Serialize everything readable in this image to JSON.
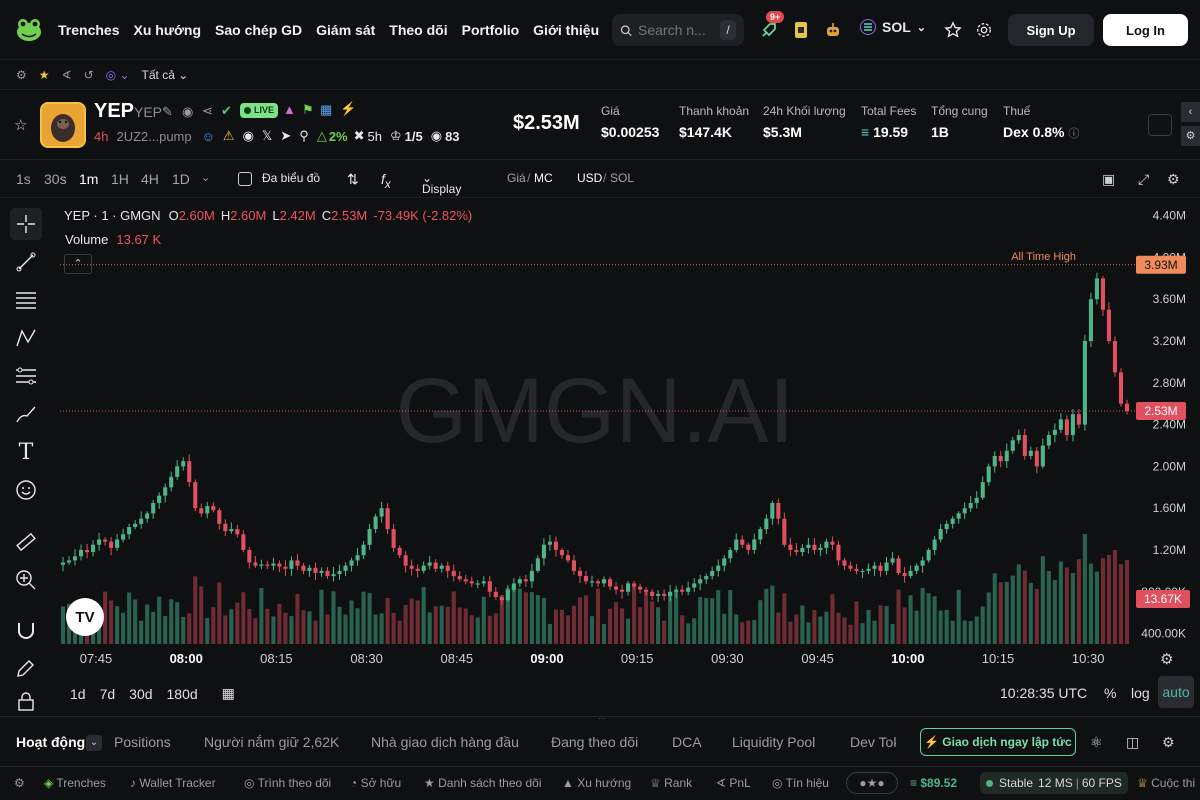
{
  "nav": {
    "links": [
      "Trenches",
      "Xu hướng",
      "Sao chép GD",
      "Giám sát",
      "Theo dõi",
      "Portfolio",
      "Giới thiệu"
    ],
    "search_placeholder": "Search n...",
    "search_shortcut": "/",
    "notif_badge": "9+",
    "chain": "SOL",
    "signup": "Sign Up",
    "login": "Log In"
  },
  "subbar": {
    "filter": "Tất cả"
  },
  "token": {
    "name": "YEP",
    "symbol": "YEP",
    "live": "LIVE",
    "age": "4h",
    "address": "2UZ2...pump",
    "holders_pct": "2%",
    "time": "5h",
    "ratio": "1/5",
    "views": "83",
    "market_cap": "$2.53M"
  },
  "stats": [
    {
      "label": "Giá",
      "value": "$0.00253"
    },
    {
      "label": "Thanh khoản",
      "value": "$147.4K"
    },
    {
      "label": "24h Khối lượng",
      "value": "$5.3M"
    },
    {
      "label": "Total Fees",
      "value": "19.59"
    },
    {
      "label": "Tổng cung",
      "value": "1B"
    },
    {
      "label": "Thuế",
      "value": "Dex 0.8%"
    }
  ],
  "chart_toolbar": {
    "intervals": [
      "1s",
      "30s",
      "1m",
      "1H",
      "4H",
      "1D"
    ],
    "multi_chart": "Đa biểu đồ",
    "display": "Display",
    "price_label": "Giá",
    "mc_label": "MC",
    "usd_label": "USD",
    "sol_label": "SOL"
  },
  "legend": {
    "title": "YEP · 1 · GMGN",
    "o_label": "O",
    "o": "2.60M",
    "h_label": "H",
    "h": "2.60M",
    "l_label": "L",
    "l": "2.42M",
    "c_label": "C",
    "c": "2.53M",
    "change": "-73.49K (-2.82%)",
    "volume_label": "Volume",
    "volume": "13.67 K"
  },
  "chart_data": {
    "type": "candlestick",
    "watermark": "GMGN.AI",
    "ath_label": "All Time High",
    "ath_value": "3.93M",
    "last_price": "2.53M",
    "last_volume": "13.67K",
    "y_ticks": [
      "4.40M",
      "4.00M",
      "3.60M",
      "3.20M",
      "2.80M",
      "2.40M",
      "2.00M",
      "1.60M",
      "1.20M",
      "800.00K",
      "400.00K"
    ],
    "x_ticks": [
      "07:45",
      "08:00",
      "08:15",
      "08:30",
      "08:45",
      "09:00",
      "09:15",
      "09:30",
      "09:45",
      "10:00",
      "10:15",
      "10:30"
    ],
    "x_bold": [
      "08:00",
      "09:00",
      "10:00"
    ],
    "ylim": [
      0.3,
      4.55
    ],
    "close_series": [
      1.08,
      1.1,
      1.14,
      1.2,
      1.18,
      1.25,
      1.3,
      1.28,
      1.22,
      1.3,
      1.35,
      1.42,
      1.45,
      1.5,
      1.55,
      1.65,
      1.72,
      1.8,
      1.9,
      2.0,
      2.05,
      1.85,
      1.6,
      1.55,
      1.62,
      1.58,
      1.45,
      1.38,
      1.4,
      1.35,
      1.2,
      1.08,
      1.05,
      1.06,
      1.05,
      1.07,
      1.04,
      1.02,
      1.1,
      1.05,
      1.0,
      1.03,
      0.98,
      1.0,
      0.95,
      0.97,
      1.0,
      1.05,
      1.1,
      1.15,
      1.25,
      1.4,
      1.52,
      1.6,
      1.4,
      1.22,
      1.15,
      1.05,
      1.02,
      1.0,
      1.05,
      1.08,
      1.02,
      1.05,
      1.0,
      0.95,
      0.92,
      0.9,
      0.88,
      0.88,
      0.9,
      0.8,
      0.75,
      0.72,
      0.82,
      0.88,
      0.92,
      0.9,
      1.0,
      1.12,
      1.25,
      1.28,
      1.2,
      1.15,
      1.1,
      1.0,
      0.95,
      0.9,
      0.9,
      0.88,
      0.92,
      0.85,
      0.82,
      0.8,
      0.88,
      0.85,
      0.82,
      0.8,
      0.76,
      0.78,
      0.76,
      0.8,
      0.82,
      0.8,
      0.84,
      0.88,
      0.92,
      0.95,
      1.0,
      1.05,
      1.12,
      1.2,
      1.3,
      1.25,
      1.2,
      1.3,
      1.4,
      1.5,
      1.65,
      1.5,
      1.25,
      1.2,
      1.18,
      1.22,
      1.25,
      1.2,
      1.22,
      1.28,
      1.25,
      1.1,
      1.05,
      1.02,
      1.0,
      1.0,
      1.02,
      1.05,
      1.0,
      1.08,
      1.12,
      0.98,
      0.95,
      1.0,
      1.05,
      1.1,
      1.2,
      1.3,
      1.4,
      1.45,
      1.5,
      1.55,
      1.6,
      1.65,
      1.7,
      1.85,
      2.0,
      2.1,
      2.05,
      2.15,
      2.25,
      2.3,
      2.1,
      2.15,
      2.0,
      2.2,
      2.3,
      2.35,
      2.45,
      2.3,
      2.5,
      2.4,
      3.2,
      3.6,
      3.8,
      3.5,
      3.2,
      2.9,
      2.6,
      2.53
    ],
    "up_color": "#4fb589",
    "down_color": "#e0505e"
  },
  "bottom_bar": {
    "ranges": [
      "1d",
      "7d",
      "30d",
      "180d"
    ],
    "clock": "10:28:35 UTC",
    "percent": "%",
    "log": "log",
    "auto": "auto"
  },
  "bottom_tabs": {
    "tabs": [
      "Hoạt động",
      "Positions",
      "Người nắm giữ 2,62K",
      "Nhà giao dịch hàng đầu",
      "Đang theo dõi",
      "DCA",
      "Liquidity Pool",
      "Dev Tok"
    ],
    "buy_now": "Giao dịch ngay lập tức"
  },
  "footer": {
    "items": [
      "Trenches",
      "Wallet Tracker",
      "Trình theo dõi",
      "Sở hữu",
      "Danh sách theo dõi",
      "Xu hướng",
      "Rank",
      "PnL",
      "Tín hiệu"
    ],
    "sol_price": "$89.52",
    "status": "Stable",
    "latency": "12 MS",
    "fps": "60 FPS",
    "last": "Cuộc thi"
  },
  "colors": {
    "accent_green": "#4fb589",
    "accent_red": "#e0505e",
    "bg": "#0f1012"
  }
}
